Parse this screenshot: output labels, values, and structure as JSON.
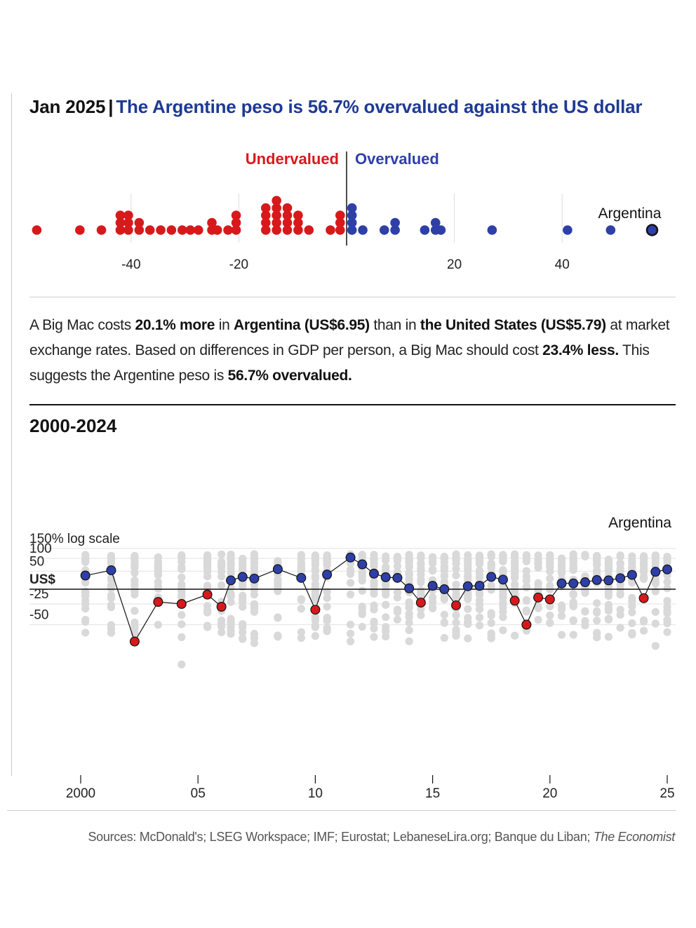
{
  "header": {
    "date": "Jan 2025",
    "separator": "|",
    "headline": "The Argentine peso is 56.7% overvalued against the US dollar"
  },
  "description": {
    "p1": "A Big Mac costs ",
    "b1": "20.1% more",
    "p2": " in ",
    "b2": "Argentina",
    "b3": " (US$6.95)",
    "p3": " than in ",
    "b4": "the United States",
    "b5": " (US$5.79)",
    "p4": " at market exchange rates. Based on differences in GDP per person, a Big Mac should cost ",
    "b6": "23.4% less.",
    "p5": " This suggests the Argentine peso is ",
    "b7": "56.7% overvalued."
  },
  "subtitle": "2000-2024",
  "source": {
    "text": "Sources: McDonald's; LSEG Workspace; IMF; Eurostat; LebaneseLira.org; Banque du Liban; ",
    "italic": "The Economist"
  },
  "colors": {
    "under": "#d7191c",
    "over": "#2e3fa8",
    "grey_dot": "#d9d9d9",
    "headline": "#1f3a93"
  },
  "chart_data": [
    {
      "type": "scatter",
      "title": "Jan 2025 | The Argentine peso is 56.7% overvalued against the US dollar",
      "label_under": "Undervalued",
      "label_over": "Overvalued",
      "highlight_label": "Argentina",
      "xlim": [
        -58,
        58
      ],
      "xticks": [
        -40,
        -20,
        20,
        40
      ],
      "xtick_labels": [
        "-40",
        "-20",
        "20",
        "40"
      ],
      "undervalued": [
        -57.5,
        -49.5,
        -45.5,
        -42,
        -42,
        -42,
        -40.5,
        -40.5,
        -40.5,
        -38.5,
        -38.5,
        -36.5,
        -34.5,
        -32.5,
        -30.5,
        -29,
        -27.5,
        -25,
        -25,
        -24,
        -22,
        -20.5,
        -20.5,
        -20.5,
        -15,
        -15,
        -15,
        -15,
        -13,
        -13,
        -13,
        -13,
        -13,
        -11,
        -11,
        -11,
        -11,
        -9,
        -9,
        -9,
        -7,
        -3,
        -1.2,
        -1.2,
        -1.2
      ],
      "overvalued": [
        1,
        1,
        1,
        1,
        3,
        7,
        9,
        9,
        14.5,
        16.5,
        16.5,
        17.5,
        27,
        41,
        49
      ],
      "highlight": {
        "name": "Argentina",
        "value": 56.7
      }
    },
    {
      "type": "line",
      "title": "2000-2024",
      "ylabel": "150% log scale",
      "baseline_label": "US$",
      "highlight_label": "Argentina",
      "yticks": [
        150,
        100,
        50,
        -25,
        -50
      ],
      "ytick_labels": [
        "150%",
        "100",
        "50",
        "-25",
        "-50"
      ],
      "ylim": [
        -80,
        190
      ],
      "xlim": [
        2000,
        2025
      ],
      "xticks": [
        2000,
        2005,
        2010,
        2015,
        2020,
        2025
      ],
      "xtick_labels": [
        "2000",
        "05",
        "10",
        "15",
        "20",
        "25"
      ],
      "series": [
        {
          "name": "Argentina",
          "x": [
            2000.2,
            2001.3,
            2002.3,
            2003.3,
            2004.3,
            2005.4,
            2006,
            2006.4,
            2006.9,
            2007.4,
            2008.4,
            2009.4,
            2010,
            2010.5,
            2011.5,
            2012,
            2012.5,
            2013,
            2013.5,
            2014,
            2014.5,
            2015,
            2015.5,
            2016,
            2016.5,
            2017,
            2017.5,
            2018,
            2018.5,
            2019,
            2019.5,
            2020,
            2020.5,
            2021,
            2021.5,
            2022,
            2022.5,
            2023,
            2023.5,
            2024,
            2024.5,
            2025
          ],
          "values": [
            36,
            53,
            -64,
            -22,
            -25,
            -10,
            -29,
            22,
            32,
            27,
            57,
            29,
            -33,
            39,
            104,
            75,
            42,
            31,
            29,
            2,
            -23,
            8,
            0,
            -27,
            7,
            8,
            32,
            24,
            -20,
            -50,
            -15,
            -18,
            14,
            14,
            17,
            23,
            22,
            28,
            38,
            -16,
            48,
            56
          ],
          "undervalued_color": "#d7191c",
          "overvalued_color": "#2e3fa8"
        }
      ]
    }
  ]
}
